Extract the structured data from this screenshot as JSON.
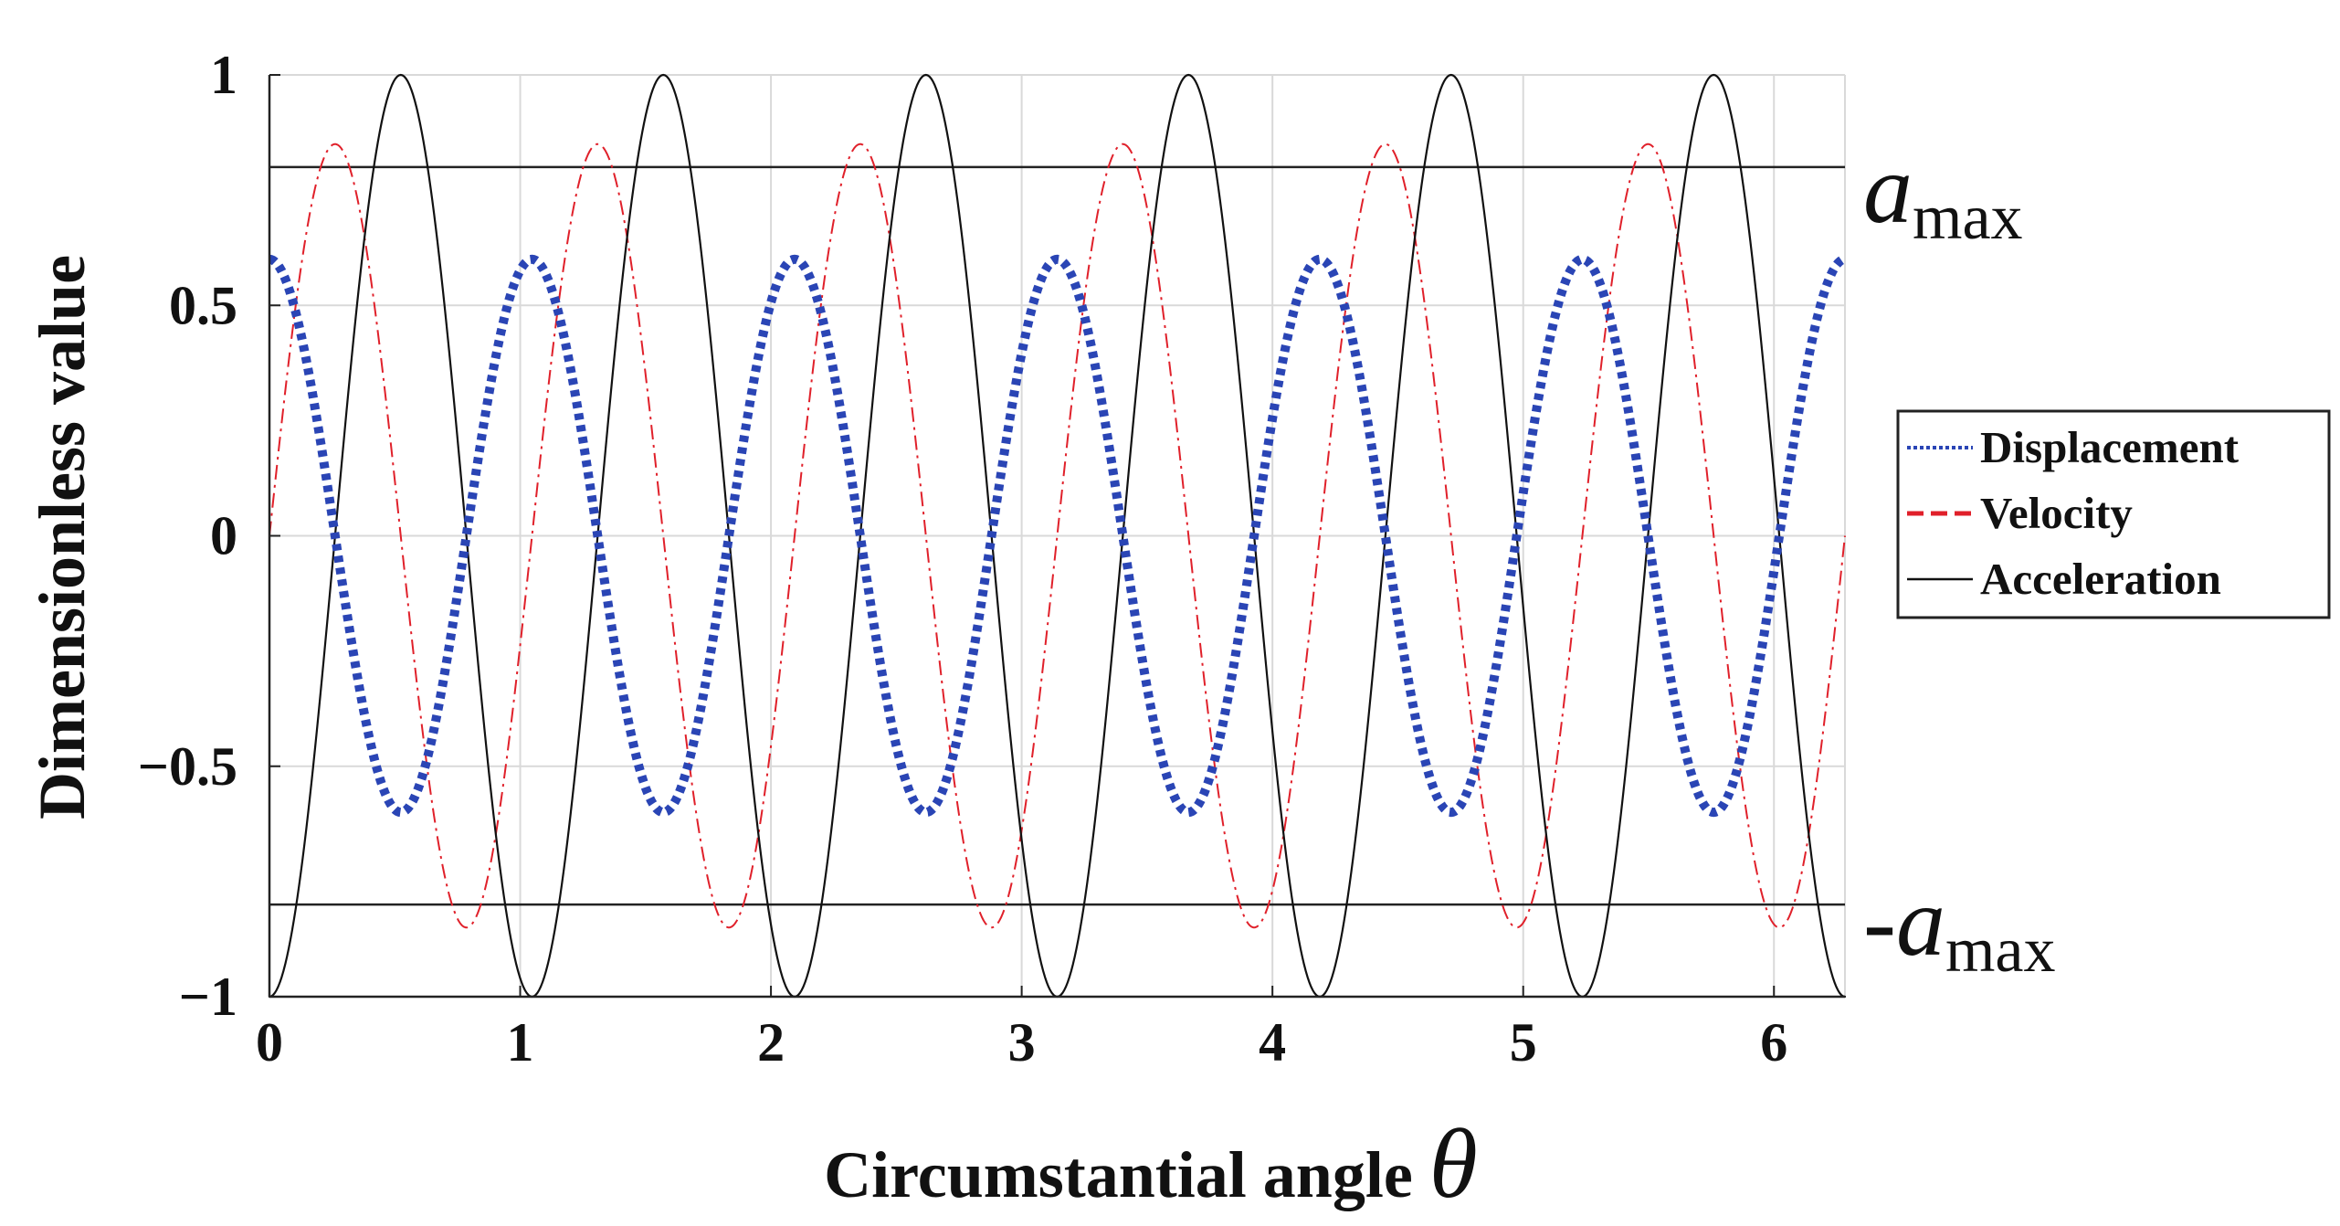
{
  "chart_data": {
    "type": "line",
    "title": "",
    "xlabel": "Circumstantial angle",
    "xlabel_symbol": "θ",
    "ylabel": "Dimensionless value",
    "xlim": [
      0,
      6.2832
    ],
    "ylim": [
      -1,
      1
    ],
    "x_ticks": [
      "0",
      "1",
      "2",
      "3",
      "4",
      "5",
      "6"
    ],
    "y_ticks": [
      "1",
      "0.5",
      "0",
      "−0.5",
      "−1"
    ],
    "grid": true,
    "legend_position": "right",
    "series": [
      {
        "name": "Displacement",
        "color": "#2a45b5",
        "style": "dotted",
        "formula": "0.6*cos(6*x)",
        "sample_x": [
          0,
          0.2618,
          0.5236,
          0.7854,
          1.0472
        ],
        "sample_y": [
          0.6,
          0,
          -0.6,
          0,
          0.6
        ]
      },
      {
        "name": "Velocity",
        "color": "#e0202a",
        "style": "dash-dot",
        "formula": "0.85*sin(6*x)",
        "sample_x": [
          0,
          0.2618,
          0.5236,
          0.7854,
          1.0472
        ],
        "sample_y": [
          0,
          0.85,
          0,
          -0.85,
          0
        ]
      },
      {
        "name": "Acceleration",
        "color": "#111111",
        "style": "solid",
        "formula": "-cos(6*x)",
        "sample_x": [
          0,
          0.2618,
          0.5236,
          0.7854,
          1.0472
        ],
        "sample_y": [
          -1,
          0,
          1,
          0,
          -1
        ]
      }
    ],
    "reference_lines": [
      {
        "y": 0.8,
        "label_main": "a",
        "label_sub": "max",
        "label_prefix": ""
      },
      {
        "y": -0.8,
        "label_main": "a",
        "label_sub": "max",
        "label_prefix": "-"
      }
    ]
  }
}
